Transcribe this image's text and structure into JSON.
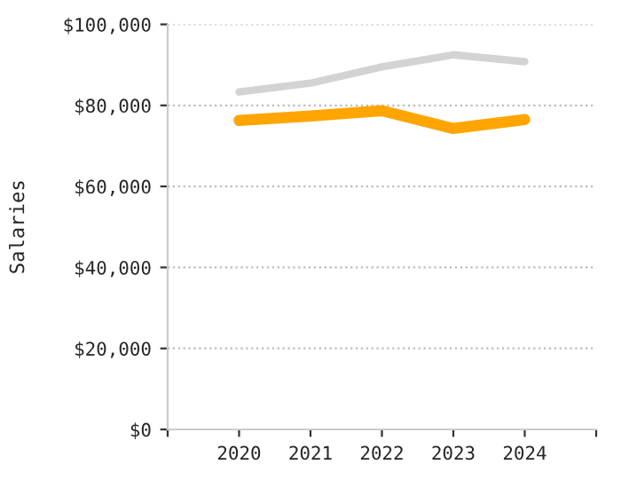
{
  "chart_data": {
    "type": "line",
    "ylabel": "Salaries",
    "x": [
      2020,
      2021,
      2022,
      2023,
      2024
    ],
    "series": [
      {
        "color": "#d3d3d3",
        "values": [
          83300,
          85500,
          89500,
          92500,
          90800
        ]
      },
      {
        "color": "#ffa500",
        "values": [
          76300,
          77400,
          78700,
          74300,
          76500
        ]
      }
    ],
    "xlim": [
      2019,
      2025
    ],
    "xticks": [
      {
        "value": 2019,
        "label": null
      },
      2020,
      2021,
      2022,
      2023,
      2024,
      {
        "value": 2025,
        "label": null
      }
    ],
    "ylim": [
      0,
      100000
    ],
    "yticks": [
      {
        "value": 0,
        "label": "$0"
      },
      {
        "value": 20000,
        "label": "$20,000"
      },
      {
        "value": 40000,
        "label": "$40,000"
      },
      {
        "value": 60000,
        "label": "$60,000"
      },
      {
        "value": 80000,
        "label": "$80,000"
      },
      {
        "value": 100000,
        "label": "$100,000"
      }
    ],
    "grid": "y"
  }
}
